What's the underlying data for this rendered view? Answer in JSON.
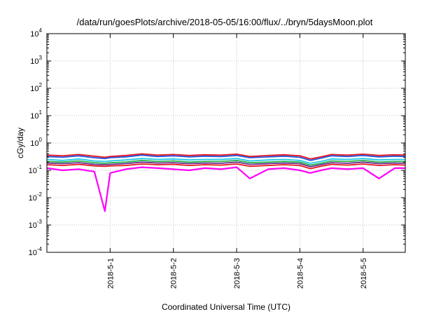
{
  "chart_data": {
    "type": "line",
    "title": "/data/run/goesPlots/archive/2018-05-05/16:00/flux/../bryn/5daysMoon.plot",
    "xlabel": "Coordinated Universal Time (UTC)",
    "ylabel": "cGy/day",
    "yscale": "log",
    "ylim": [
      0.0001,
      10000
    ],
    "xlim": [
      "2018-04-30T00:00",
      "2018-05-05T16:00"
    ],
    "grid": true,
    "x_ticks": [
      "2018-5-1",
      "2018-5-2",
      "2018-5-3",
      "2018-5-4",
      "2018-5-5"
    ],
    "y_ticks": [
      {
        "base": "10",
        "exp": "-4",
        "value": 0.0001
      },
      {
        "base": "10",
        "exp": "-3",
        "value": 0.001
      },
      {
        "base": "10",
        "exp": "-2",
        "value": 0.01
      },
      {
        "base": "10",
        "exp": "-1",
        "value": 0.1
      },
      {
        "base": "10",
        "exp": "0",
        "value": 1
      },
      {
        "base": "10",
        "exp": "1",
        "value": 10
      },
      {
        "base": "10",
        "exp": "2",
        "value": 100
      },
      {
        "base": "10",
        "exp": "3",
        "value": 1000
      },
      {
        "base": "10",
        "exp": "4",
        "value": 10000
      }
    ],
    "x": [
      "2018-04-30T00:00",
      "2018-04-30T06:00",
      "2018-04-30T12:00",
      "2018-04-30T18:00",
      "2018-04-30T22:00",
      "2018-05-01T00:00",
      "2018-05-01T06:00",
      "2018-05-01T12:00",
      "2018-05-01T18:00",
      "2018-05-02T00:00",
      "2018-05-02T06:00",
      "2018-05-02T12:00",
      "2018-05-02T18:00",
      "2018-05-03T00:00",
      "2018-05-03T05:00",
      "2018-05-03T12:00",
      "2018-05-03T18:00",
      "2018-05-04T00:00",
      "2018-05-04T04:00",
      "2018-05-04T08:00",
      "2018-05-04T12:00",
      "2018-05-04T18:00",
      "2018-05-05T00:00",
      "2018-05-05T06:00",
      "2018-05-05T12:00",
      "2018-05-05T16:00"
    ],
    "series": [
      {
        "color": "#e8141e",
        "values": [
          0.36,
          0.34,
          0.38,
          0.33,
          0.3,
          0.32,
          0.35,
          0.4,
          0.36,
          0.38,
          0.35,
          0.37,
          0.36,
          0.39,
          0.32,
          0.35,
          0.37,
          0.34,
          0.26,
          0.31,
          0.38,
          0.36,
          0.39,
          0.35,
          0.37,
          0.36
        ]
      },
      {
        "color": "#1f55e0",
        "values": [
          0.32,
          0.3,
          0.34,
          0.29,
          0.27,
          0.29,
          0.31,
          0.36,
          0.32,
          0.34,
          0.31,
          0.33,
          0.32,
          0.35,
          0.29,
          0.31,
          0.33,
          0.3,
          0.23,
          0.28,
          0.34,
          0.32,
          0.35,
          0.31,
          0.33,
          0.32
        ]
      },
      {
        "color": "#20c8e6",
        "values": [
          0.25,
          0.23,
          0.26,
          0.22,
          0.21,
          0.22,
          0.24,
          0.27,
          0.25,
          0.26,
          0.24,
          0.25,
          0.25,
          0.27,
          0.22,
          0.24,
          0.25,
          0.23,
          0.18,
          0.21,
          0.26,
          0.25,
          0.27,
          0.24,
          0.25,
          0.25
        ]
      },
      {
        "color": "#22b24c",
        "values": [
          0.21,
          0.2,
          0.22,
          0.19,
          0.18,
          0.19,
          0.2,
          0.23,
          0.21,
          0.22,
          0.2,
          0.21,
          0.21,
          0.23,
          0.19,
          0.2,
          0.21,
          0.2,
          0.155,
          0.18,
          0.22,
          0.21,
          0.23,
          0.2,
          0.21,
          0.21
        ]
      },
      {
        "color": "#6b2a8c",
        "values": [
          0.185,
          0.175,
          0.19,
          0.165,
          0.16,
          0.165,
          0.175,
          0.2,
          0.185,
          0.19,
          0.175,
          0.185,
          0.18,
          0.2,
          0.165,
          0.175,
          0.185,
          0.175,
          0.135,
          0.16,
          0.19,
          0.18,
          0.2,
          0.175,
          0.185,
          0.18
        ]
      },
      {
        "color": "#e8141e",
        "values": [
          0.16,
          0.15,
          0.165,
          0.145,
          0.14,
          0.145,
          0.15,
          0.17,
          0.16,
          0.165,
          0.15,
          0.16,
          0.155,
          0.17,
          0.14,
          0.15,
          0.16,
          0.15,
          0.115,
          0.14,
          0.165,
          0.155,
          0.17,
          0.15,
          0.16,
          0.155
        ]
      },
      {
        "color": "#ff00ff",
        "values": [
          0.12,
          0.1,
          0.11,
          0.09,
          0.0032,
          0.08,
          0.11,
          0.13,
          0.12,
          0.11,
          0.1,
          0.12,
          0.11,
          0.13,
          0.05,
          0.11,
          0.12,
          0.1,
          0.08,
          0.1,
          0.12,
          0.11,
          0.12,
          0.05,
          0.12,
          0.12
        ]
      }
    ]
  }
}
